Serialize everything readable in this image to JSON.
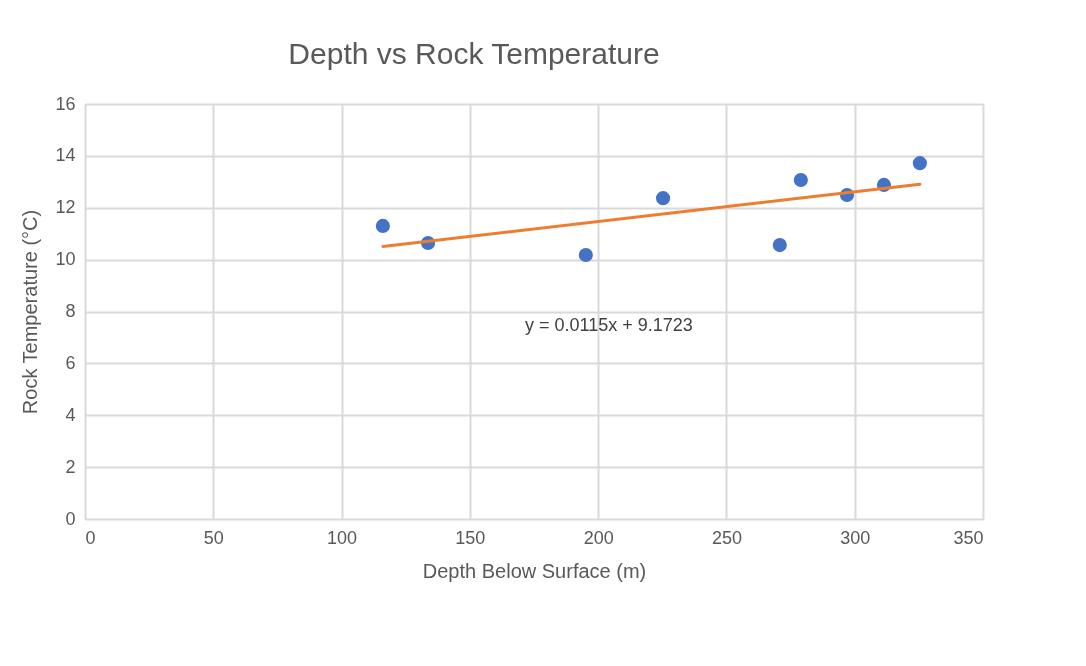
{
  "chart_data": {
    "type": "scatter",
    "title": "Depth vs Rock Temperature",
    "xlabel": "Depth Below Surface (m)",
    "ylabel": "Rock Temperature (°C)",
    "x": [
      116.1,
      133.7,
      195.2,
      225.3,
      270.8,
      279.0,
      297.0,
      311.4,
      325.4
    ],
    "series": [
      {
        "marker": "circle",
        "color": "#4472c4",
        "values": [
          11.3,
          10.64,
          10.18,
          12.37,
          10.56,
          13.07,
          12.49,
          12.88,
          13.72
        ]
      },
      {
        "type": "line",
        "color": "#ed7d31",
        "x": [
          116.1,
          325.4
        ],
        "values": [
          10.51,
          12.91
        ]
      }
    ],
    "annotations": [
      "y = 0.0115x + 9.1723"
    ],
    "xlim": [
      0,
      350
    ],
    "xticks": [
      0,
      50,
      100,
      150,
      200,
      250,
      300,
      350
    ],
    "ylim": [
      0,
      16
    ],
    "yticks": [
      0,
      2,
      4,
      6,
      8,
      10,
      12,
      14,
      16
    ],
    "grid": true
  }
}
